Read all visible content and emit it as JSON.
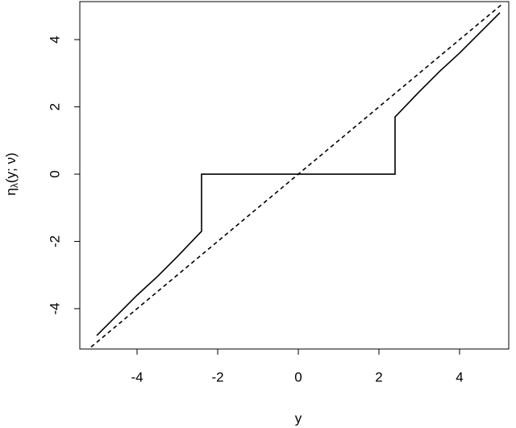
{
  "chart_data": {
    "type": "line",
    "xlabel": "y",
    "ylabel": {
      "base": "η",
      "subscript": "λ",
      "args": "(y; ν)"
    },
    "xlim": [
      -5.42,
      5.22
    ],
    "ylim": [
      -5.2,
      5.13
    ],
    "xticks": [
      -4,
      -2,
      0,
      2,
      4
    ],
    "yticks": [
      -4,
      -2,
      0,
      2,
      4
    ],
    "series": [
      {
        "color": "#000000",
        "style": "solid",
        "x": [
          -5,
          -4.5,
          -4,
          -3.5,
          -3,
          -2.4,
          -2.4,
          2.4,
          2.4,
          3,
          3.5,
          4,
          4.5,
          5
        ],
        "values": [
          -4.8,
          -4.2,
          -3.6,
          -3.05,
          -2.45,
          -1.7,
          0,
          0,
          1.7,
          2.45,
          3.05,
          3.6,
          4.2,
          4.8
        ]
      },
      {
        "color": "#000000",
        "style": "dashed",
        "x": [
          -5.14,
          5.08
        ],
        "values": [
          -5.14,
          5.08
        ]
      }
    ]
  }
}
